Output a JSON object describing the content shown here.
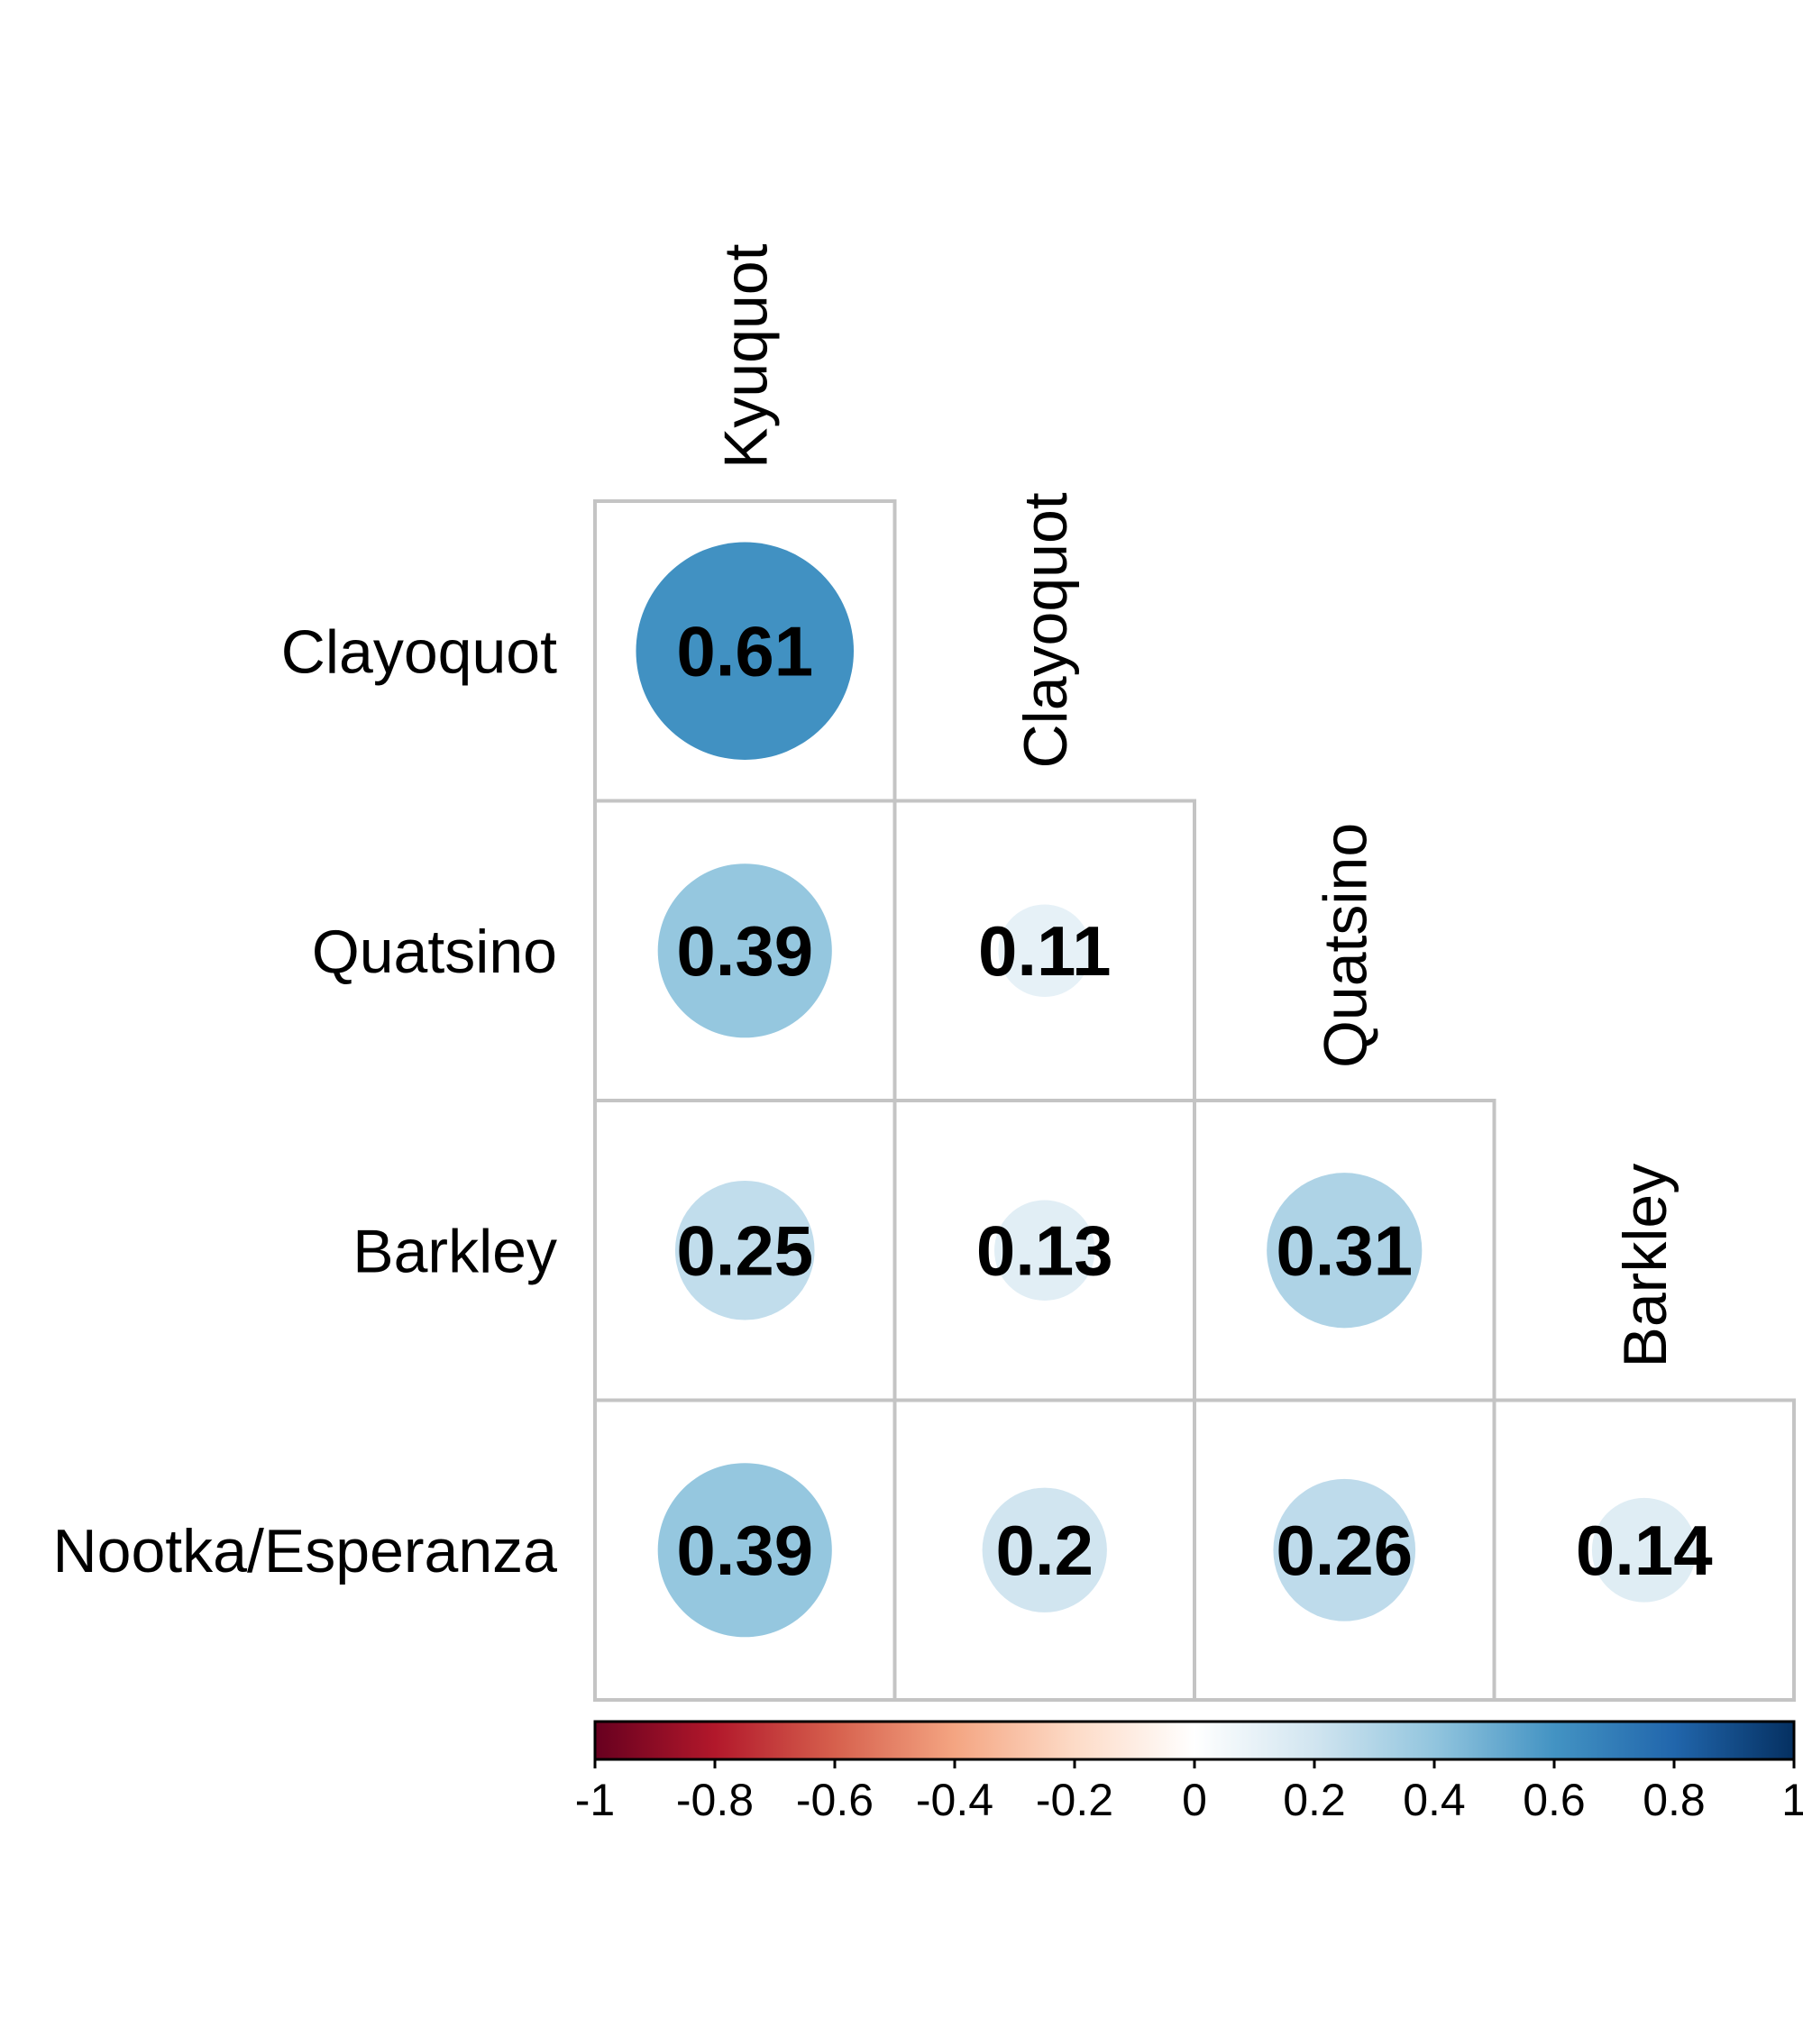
{
  "chart_data": {
    "type": "heatmap",
    "title": "",
    "variables": [
      "Kyuquot",
      "Clayoquot",
      "Quatsino",
      "Barkley",
      "Nootka/Esperanza"
    ],
    "row_labels": [
      "Clayoquot",
      "Quatsino",
      "Barkley",
      "Nootka/Esperanza"
    ],
    "col_labels": [
      "Kyuquot",
      "Clayoquot",
      "Quatsino",
      "Barkley"
    ],
    "matrix": [
      [
        0.61,
        null,
        null,
        null
      ],
      [
        0.39,
        0.11,
        null,
        null
      ],
      [
        0.25,
        0.13,
        0.31,
        null
      ],
      [
        0.39,
        0.2,
        0.26,
        0.14
      ]
    ],
    "value_labels": [
      [
        "0.61",
        "",
        "",
        ""
      ],
      [
        "0.39",
        "0.11",
        "",
        ""
      ],
      [
        "0.25",
        "0.13",
        "0.31",
        ""
      ],
      [
        "0.39",
        "0.2",
        "0.26",
        "0.14"
      ]
    ],
    "shape": "circle",
    "layout": "lower-triangle",
    "colorbar": {
      "range": [
        -1,
        1
      ],
      "ticks": [
        -1,
        -0.8,
        -0.6,
        -0.4,
        -0.2,
        0,
        0.2,
        0.4,
        0.6,
        0.8,
        1
      ],
      "tick_labels": [
        "-1",
        "-0.8",
        "-0.6",
        "-0.4",
        "-0.2",
        "0",
        "0.2",
        "0.4",
        "0.6",
        "0.8",
        "1"
      ],
      "placement": "bottom",
      "colors": [
        "#67001f",
        "#b2182b",
        "#d6604d",
        "#f4a582",
        "#fddbc7",
        "#ffffff",
        "#d1e5f0",
        "#92c5de",
        "#4393c3",
        "#2166ac",
        "#053061"
      ]
    }
  }
}
